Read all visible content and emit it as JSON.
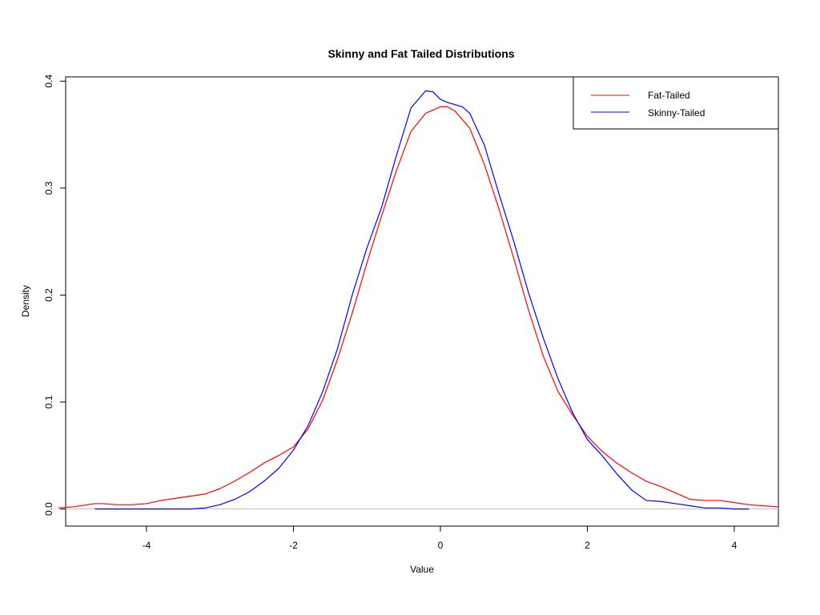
{
  "chart_data": {
    "type": "line",
    "title": "Skinny and Fat Tailed Distributions",
    "xlabel": "Value",
    "ylabel": "Density",
    "xlim": [
      -5.1,
      4.6
    ],
    "ylim": [
      -0.016,
      0.404
    ],
    "x_ticks": [
      -4,
      -2,
      0,
      2,
      4
    ],
    "x_tick_labels": [
      "-4",
      "-2",
      "0",
      "2",
      "4"
    ],
    "y_ticks": [
      0.0,
      0.1,
      0.2,
      0.3,
      0.4
    ],
    "y_tick_labels": [
      "0.0",
      "0.1",
      "0.2",
      "0.3",
      "0.4"
    ],
    "baseline": 0,
    "legend_position": "top-right",
    "grid": false,
    "series": [
      {
        "name": "Fat-Tailed",
        "color": "#ff0000",
        "x": [
          -5.2,
          -5.0,
          -4.8,
          -4.7,
          -4.6,
          -4.4,
          -4.2,
          -4.0,
          -3.8,
          -3.6,
          -3.4,
          -3.2,
          -3.0,
          -2.8,
          -2.6,
          -2.4,
          -2.2,
          -2.0,
          -1.8,
          -1.6,
          -1.4,
          -1.2,
          -1.0,
          -0.8,
          -0.6,
          -0.4,
          -0.2,
          0.0,
          0.1,
          0.2,
          0.4,
          0.6,
          0.8,
          1.0,
          1.2,
          1.4,
          1.6,
          1.8,
          2.0,
          2.2,
          2.4,
          2.6,
          2.8,
          3.0,
          3.2,
          3.4,
          3.6,
          3.8,
          4.0,
          4.2,
          4.4,
          4.6
        ],
        "y": [
          0.001,
          0.002,
          0.004,
          0.005,
          0.005,
          0.004,
          0.004,
          0.005,
          0.008,
          0.01,
          0.012,
          0.014,
          0.019,
          0.026,
          0.034,
          0.043,
          0.05,
          0.058,
          0.075,
          0.102,
          0.14,
          0.183,
          0.23,
          0.274,
          0.316,
          0.353,
          0.37,
          0.376,
          0.376,
          0.372,
          0.356,
          0.322,
          0.28,
          0.234,
          0.186,
          0.143,
          0.11,
          0.088,
          0.068,
          0.054,
          0.043,
          0.034,
          0.026,
          0.021,
          0.015,
          0.009,
          0.008,
          0.008,
          0.006,
          0.004,
          0.003,
          0.002
        ]
      },
      {
        "name": "Skinny-Tailed",
        "color": "#0000ff",
        "x": [
          -4.7,
          -4.4,
          -4.2,
          -4.0,
          -3.8,
          -3.6,
          -3.4,
          -3.2,
          -3.0,
          -2.8,
          -2.6,
          -2.4,
          -2.2,
          -2.0,
          -1.8,
          -1.6,
          -1.4,
          -1.2,
          -1.0,
          -0.8,
          -0.6,
          -0.4,
          -0.2,
          -0.1,
          0.0,
          0.1,
          0.2,
          0.3,
          0.4,
          0.6,
          0.8,
          1.0,
          1.2,
          1.4,
          1.6,
          1.8,
          2.0,
          2.2,
          2.4,
          2.6,
          2.8,
          3.0,
          3.2,
          3.4,
          3.6,
          3.8,
          4.0,
          4.2
        ],
        "y": [
          0.0,
          0.0,
          0.0,
          0.0,
          0.0,
          0.0,
          0.0,
          0.001,
          0.004,
          0.009,
          0.016,
          0.026,
          0.038,
          0.055,
          0.078,
          0.11,
          0.15,
          0.2,
          0.244,
          0.282,
          0.33,
          0.375,
          0.391,
          0.39,
          0.383,
          0.38,
          0.378,
          0.376,
          0.37,
          0.34,
          0.294,
          0.25,
          0.202,
          0.16,
          0.122,
          0.09,
          0.065,
          0.05,
          0.033,
          0.018,
          0.008,
          0.007,
          0.005,
          0.003,
          0.001,
          0.001,
          0.0,
          0.0
        ]
      }
    ]
  }
}
